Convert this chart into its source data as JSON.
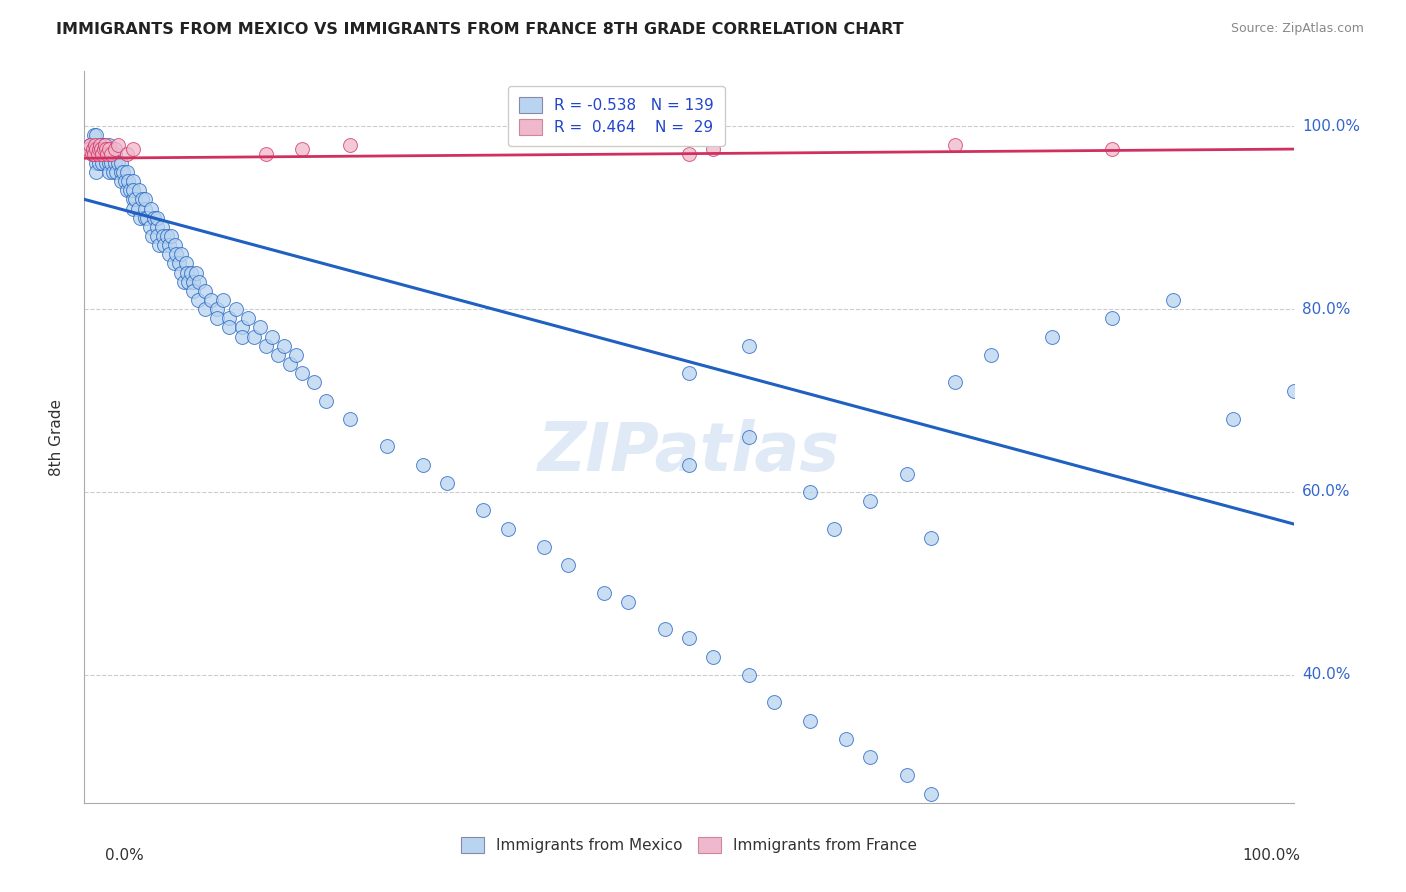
{
  "title": "IMMIGRANTS FROM MEXICO VS IMMIGRANTS FROM FRANCE 8TH GRADE CORRELATION CHART",
  "source": "Source: ZipAtlas.com",
  "ylabel": "8th Grade",
  "legend_bottom": [
    "Immigrants from Mexico",
    "Immigrants from France"
  ],
  "R_mexico": -0.538,
  "N_mexico": 139,
  "R_france": 0.464,
  "N_france": 29,
  "color_mexico": "#b8d4f0",
  "color_france": "#f0b8cc",
  "line_color_mexico": "#2060c0",
  "line_color_france": "#d03060",
  "xlim": [
    0.0,
    1.0
  ],
  "ylim": [
    0.26,
    1.06
  ],
  "ytick_vals": [
    0.4,
    0.6,
    0.8,
    1.0
  ],
  "ytick_labels": [
    "40.0%",
    "60.0%",
    "80.0%",
    "100.0%"
  ],
  "mexico_line_x0": 0.0,
  "mexico_line_y0": 0.92,
  "mexico_line_x1": 1.0,
  "mexico_line_y1": 0.565,
  "france_line_x0": 0.0,
  "france_line_y0": 0.965,
  "france_line_x1": 1.0,
  "france_line_y1": 0.975,
  "mexico_x": [
    0.005,
    0.007,
    0.008,
    0.01,
    0.01,
    0.01,
    0.01,
    0.01,
    0.01,
    0.012,
    0.014,
    0.015,
    0.015,
    0.016,
    0.017,
    0.018,
    0.02,
    0.02,
    0.02,
    0.02,
    0.02,
    0.022,
    0.024,
    0.025,
    0.025,
    0.026,
    0.028,
    0.03,
    0.03,
    0.03,
    0.032,
    0.034,
    0.035,
    0.035,
    0.036,
    0.038,
    0.04,
    0.04,
    0.04,
    0.04,
    0.042,
    0.044,
    0.045,
    0.046,
    0.048,
    0.05,
    0.05,
    0.05,
    0.052,
    0.054,
    0.055,
    0.056,
    0.058,
    0.06,
    0.06,
    0.06,
    0.062,
    0.064,
    0.065,
    0.066,
    0.068,
    0.07,
    0.07,
    0.072,
    0.074,
    0.075,
    0.076,
    0.078,
    0.08,
    0.08,
    0.082,
    0.084,
    0.085,
    0.086,
    0.088,
    0.09,
    0.09,
    0.092,
    0.094,
    0.095,
    0.1,
    0.1,
    0.105,
    0.11,
    0.11,
    0.115,
    0.12,
    0.12,
    0.125,
    0.13,
    0.13,
    0.135,
    0.14,
    0.145,
    0.15,
    0.155,
    0.16,
    0.165,
    0.17,
    0.175,
    0.18,
    0.19,
    0.2,
    0.22,
    0.25,
    0.28,
    0.3,
    0.33,
    0.35,
    0.38,
    0.4,
    0.43,
    0.45,
    0.48,
    0.5,
    0.52,
    0.55,
    0.57,
    0.6,
    0.63,
    0.65,
    0.68,
    0.7,
    0.72,
    0.75,
    0.8,
    0.85,
    0.9,
    0.95,
    1.0,
    0.5,
    0.55,
    0.6,
    0.5,
    0.55,
    0.62,
    0.65,
    0.68,
    0.7
  ],
  "mexico_y": [
    0.98,
    0.97,
    0.99,
    0.97,
    0.98,
    0.96,
    0.99,
    0.95,
    0.97,
    0.96,
    0.98,
    0.97,
    0.96,
    0.98,
    0.97,
    0.96,
    0.97,
    0.96,
    0.98,
    0.95,
    0.97,
    0.96,
    0.95,
    0.97,
    0.96,
    0.95,
    0.96,
    0.95,
    0.94,
    0.96,
    0.95,
    0.94,
    0.93,
    0.95,
    0.94,
    0.93,
    0.92,
    0.94,
    0.93,
    0.91,
    0.92,
    0.91,
    0.93,
    0.9,
    0.92,
    0.91,
    0.9,
    0.92,
    0.9,
    0.89,
    0.91,
    0.88,
    0.9,
    0.89,
    0.88,
    0.9,
    0.87,
    0.89,
    0.88,
    0.87,
    0.88,
    0.87,
    0.86,
    0.88,
    0.85,
    0.87,
    0.86,
    0.85,
    0.84,
    0.86,
    0.83,
    0.85,
    0.84,
    0.83,
    0.84,
    0.83,
    0.82,
    0.84,
    0.81,
    0.83,
    0.82,
    0.8,
    0.81,
    0.8,
    0.79,
    0.81,
    0.79,
    0.78,
    0.8,
    0.78,
    0.77,
    0.79,
    0.77,
    0.78,
    0.76,
    0.77,
    0.75,
    0.76,
    0.74,
    0.75,
    0.73,
    0.72,
    0.7,
    0.68,
    0.65,
    0.63,
    0.61,
    0.58,
    0.56,
    0.54,
    0.52,
    0.49,
    0.48,
    0.45,
    0.44,
    0.42,
    0.4,
    0.37,
    0.35,
    0.33,
    0.31,
    0.29,
    0.27,
    0.72,
    0.75,
    0.77,
    0.79,
    0.81,
    0.68,
    0.71,
    0.73,
    0.76,
    0.6,
    0.63,
    0.66,
    0.56,
    0.59,
    0.62,
    0.55
  ],
  "france_x": [
    0.003,
    0.005,
    0.006,
    0.007,
    0.008,
    0.009,
    0.01,
    0.011,
    0.012,
    0.013,
    0.014,
    0.015,
    0.016,
    0.017,
    0.018,
    0.019,
    0.02,
    0.022,
    0.025,
    0.028,
    0.035,
    0.04,
    0.15,
    0.18,
    0.22,
    0.5,
    0.52,
    0.72,
    0.85
  ],
  "france_y": [
    0.975,
    0.98,
    0.97,
    0.975,
    0.97,
    0.98,
    0.975,
    0.97,
    0.975,
    0.98,
    0.975,
    0.97,
    0.975,
    0.98,
    0.975,
    0.97,
    0.975,
    0.97,
    0.975,
    0.98,
    0.97,
    0.975,
    0.97,
    0.975,
    0.98,
    0.97,
    0.975,
    0.98,
    0.975
  ]
}
